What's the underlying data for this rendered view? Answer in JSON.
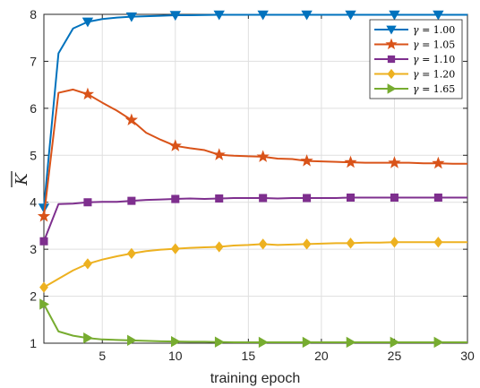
{
  "chart_data": {
    "type": "line",
    "xlabel": "training epoch",
    "ylabel": "K",
    "xlim": [
      1,
      30
    ],
    "ylim": [
      1,
      8
    ],
    "xticks": [
      5,
      10,
      15,
      20,
      25,
      30
    ],
    "yticks": [
      1,
      2,
      3,
      4,
      5,
      6,
      7,
      8
    ],
    "grid": true,
    "legend_position": "top-right",
    "series": [
      {
        "name": "γ = 1.00",
        "symbol": "γ",
        "value_text": " = 1.00",
        "color": "#0072BD",
        "marker": "triangle-down",
        "x": [
          1,
          2,
          3,
          4,
          5,
          6,
          7,
          8,
          9,
          10,
          11,
          12,
          13,
          14,
          15,
          16,
          17,
          18,
          19,
          20,
          21,
          22,
          23,
          24,
          25,
          26,
          27,
          28,
          29,
          30
        ],
        "y": [
          3.88,
          7.17,
          7.7,
          7.84,
          7.9,
          7.93,
          7.95,
          7.96,
          7.97,
          7.98,
          7.98,
          7.985,
          7.99,
          7.99,
          7.99,
          7.99,
          7.99,
          7.99,
          7.99,
          7.99,
          7.99,
          7.99,
          7.99,
          7.99,
          7.99,
          7.99,
          7.99,
          7.99,
          7.99,
          7.99
        ],
        "marker_x": [
          1,
          4,
          7,
          10,
          13,
          16,
          19,
          22,
          25,
          28
        ]
      },
      {
        "name": "γ = 1.05",
        "symbol": "γ",
        "value_text": " = 1.05",
        "color": "#D95319",
        "marker": "star",
        "x": [
          1,
          2,
          3,
          4,
          5,
          6,
          7,
          8,
          9,
          10,
          11,
          12,
          13,
          14,
          15,
          16,
          17,
          18,
          19,
          20,
          21,
          22,
          23,
          24,
          25,
          26,
          27,
          28,
          29,
          30
        ],
        "y": [
          3.7,
          6.33,
          6.4,
          6.3,
          6.12,
          5.95,
          5.75,
          5.48,
          5.33,
          5.2,
          5.15,
          5.11,
          5.01,
          4.99,
          4.98,
          4.97,
          4.93,
          4.92,
          4.88,
          4.87,
          4.86,
          4.85,
          4.84,
          4.84,
          4.84,
          4.84,
          4.83,
          4.83,
          4.82,
          4.82
        ],
        "marker_x": [
          1,
          4,
          7,
          10,
          13,
          16,
          19,
          22,
          25,
          28
        ]
      },
      {
        "name": "γ = 1.10",
        "symbol": "γ",
        "value_text": " = 1.10",
        "color": "#7E2F8E",
        "marker": "square",
        "x": [
          1,
          2,
          3,
          4,
          5,
          6,
          7,
          8,
          9,
          10,
          11,
          12,
          13,
          14,
          15,
          16,
          17,
          18,
          19,
          20,
          21,
          22,
          23,
          24,
          25,
          26,
          27,
          28,
          29,
          30
        ],
        "y": [
          3.17,
          3.96,
          3.97,
          4.0,
          4.01,
          4.01,
          4.03,
          4.05,
          4.06,
          4.07,
          4.08,
          4.07,
          4.08,
          4.09,
          4.09,
          4.09,
          4.08,
          4.09,
          4.09,
          4.09,
          4.09,
          4.1,
          4.1,
          4.1,
          4.1,
          4.1,
          4.1,
          4.1,
          4.1,
          4.1
        ],
        "marker_x": [
          1,
          4,
          7,
          10,
          13,
          16,
          19,
          22,
          25,
          28
        ]
      },
      {
        "name": "γ = 1.20",
        "symbol": "γ",
        "value_text": " = 1.20",
        "color": "#EDB120",
        "marker": "diamond",
        "x": [
          1,
          2,
          3,
          4,
          5,
          6,
          7,
          8,
          9,
          10,
          11,
          12,
          13,
          14,
          15,
          16,
          17,
          18,
          19,
          20,
          21,
          22,
          23,
          24,
          25,
          26,
          27,
          28,
          29,
          30
        ],
        "y": [
          2.19,
          2.37,
          2.55,
          2.69,
          2.78,
          2.85,
          2.91,
          2.96,
          2.99,
          3.01,
          3.03,
          3.04,
          3.05,
          3.08,
          3.09,
          3.11,
          3.09,
          3.1,
          3.11,
          3.12,
          3.13,
          3.13,
          3.14,
          3.14,
          3.15,
          3.15,
          3.15,
          3.15,
          3.15,
          3.15
        ],
        "marker_x": [
          1,
          4,
          7,
          10,
          13,
          16,
          19,
          22,
          25,
          28
        ]
      },
      {
        "name": "γ = 1.65",
        "symbol": "γ",
        "value_text": " = 1.65",
        "color": "#77AC30",
        "marker": "triangle-right",
        "x": [
          1,
          2,
          3,
          4,
          5,
          6,
          7,
          8,
          9,
          10,
          11,
          12,
          13,
          14,
          15,
          16,
          17,
          18,
          19,
          20,
          21,
          22,
          23,
          24,
          25,
          26,
          27,
          28,
          29,
          30
        ],
        "y": [
          1.83,
          1.25,
          1.16,
          1.11,
          1.08,
          1.07,
          1.06,
          1.05,
          1.04,
          1.035,
          1.03,
          1.03,
          1.025,
          1.02,
          1.02,
          1.02,
          1.02,
          1.02,
          1.02,
          1.02,
          1.02,
          1.02,
          1.02,
          1.02,
          1.02,
          1.02,
          1.02,
          1.02,
          1.02,
          1.02
        ],
        "marker_x": [
          1,
          4,
          7,
          10,
          13,
          16,
          19,
          22,
          25,
          28
        ]
      }
    ]
  }
}
